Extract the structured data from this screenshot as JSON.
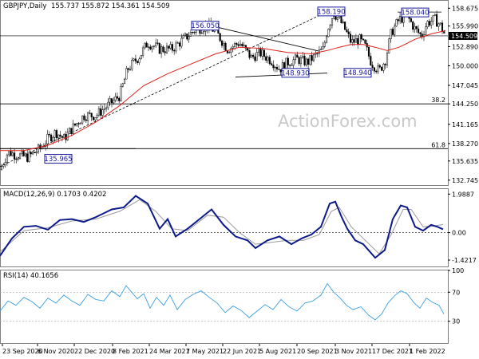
{
  "chart_data": [
    {
      "type": "candlestick",
      "title": "GBPJPY,Daily",
      "ohlc_text": "155.737 155.872 154.361 154.509",
      "last_price": 154.509,
      "last_price_label": "154.509",
      "y_ticks": [
        158.675,
        155.99,
        152.89,
        150.0,
        147.045,
        144.25,
        141.165,
        138.27,
        135.635,
        132.745
      ],
      "y_tick_labels": [
        "158.675",
        "155.990",
        "152.890",
        "150.000",
        "147.045",
        "144.250",
        "141.165",
        "138.270",
        "135.635",
        "132.745"
      ],
      "ylim": [
        132.0,
        159.8
      ],
      "x_labels": [
        "23 Sep 2020",
        "6 Nov 2020",
        "22 Dec 2020",
        "8 Feb 2021",
        "24 Mar 2021",
        "7 May 2021",
        "22 Jun 2021",
        "5 Aug 2021",
        "20 Sep 2021",
        "3 Nov 2021",
        "17 Dec 2021",
        "1 Feb 2022"
      ],
      "close_path": [
        [
          0,
          134.3
        ],
        [
          10,
          137.0
        ],
        [
          22,
          136.5
        ],
        [
          35,
          136.2
        ],
        [
          50,
          137.5
        ],
        [
          60,
          139.0
        ],
        [
          70,
          140.0
        ],
        [
          80,
          139.0
        ],
        [
          90,
          140.5
        ],
        [
          105,
          142.5
        ],
        [
          120,
          142.5
        ],
        [
          135,
          144.0
        ],
        [
          150,
          145.5
        ],
        [
          160,
          149.5
        ],
        [
          175,
          151.5
        ],
        [
          185,
          153.5
        ],
        [
          200,
          152.5
        ],
        [
          215,
          152.5
        ],
        [
          230,
          154.0
        ],
        [
          245,
          155.5
        ],
        [
          260,
          156.0
        ],
        [
          270,
          155.2
        ],
        [
          285,
          152.5
        ],
        [
          300,
          153.5
        ],
        [
          315,
          151.2
        ],
        [
          325,
          152.0
        ],
        [
          340,
          150.8
        ],
        [
          350,
          149.5
        ],
        [
          360,
          150.5
        ],
        [
          372,
          151.0
        ],
        [
          385,
          150.5
        ],
        [
          395,
          151.5
        ],
        [
          405,
          152.5
        ],
        [
          410,
          155.5
        ],
        [
          418,
          158.0
        ],
        [
          425,
          157.0
        ],
        [
          432,
          155.5
        ],
        [
          440,
          153.5
        ],
        [
          450,
          154.0
        ],
        [
          458,
          152.8
        ],
        [
          465,
          150.5
        ],
        [
          475,
          149.2
        ],
        [
          483,
          151.0
        ],
        [
          490,
          155.0
        ],
        [
          500,
          157.0
        ],
        [
          510,
          157.5
        ],
        [
          520,
          155.5
        ],
        [
          528,
          154.5
        ],
        [
          535,
          156.5
        ],
        [
          545,
          157.0
        ],
        [
          552,
          156.0
        ],
        [
          558,
          154.5
        ]
      ],
      "ma_path": [
        [
          0,
          137.2
        ],
        [
          30,
          137.2
        ],
        [
          60,
          138.0
        ],
        [
          90,
          139.5
        ],
        [
          120,
          141.5
        ],
        [
          150,
          144.0
        ],
        [
          180,
          147.0
        ],
        [
          210,
          148.8
        ],
        [
          240,
          150.3
        ],
        [
          270,
          151.8
        ],
        [
          300,
          152.8
        ],
        [
          330,
          152.6
        ],
        [
          360,
          152.0
        ],
        [
          390,
          151.8
        ],
        [
          410,
          152.3
        ],
        [
          425,
          152.8
        ],
        [
          440,
          153.2
        ],
        [
          455,
          153.2
        ],
        [
          470,
          152.8
        ],
        [
          485,
          152.3
        ],
        [
          500,
          152.8
        ],
        [
          520,
          154.0
        ],
        [
          540,
          154.8
        ],
        [
          558,
          155.3
        ]
      ],
      "annotations": [
        {
          "label": "156.050",
          "x": 257,
          "y": 156.05
        },
        {
          "label": "158.190",
          "x": 415,
          "y": 158.19
        },
        {
          "label": "158.040",
          "x": 520,
          "y": 158.04
        },
        {
          "label": "148.930",
          "x": 370,
          "y": 148.93
        },
        {
          "label": "148.940",
          "x": 448,
          "y": 148.94
        },
        {
          "label": "135.965",
          "x": 73,
          "y": 135.965
        }
      ],
      "fib_levels": [
        {
          "label": "38.2",
          "value": 144.25
        },
        {
          "label": "61.8",
          "value": 137.5
        }
      ],
      "watermark": "ActionForex.com"
    },
    {
      "type": "line",
      "title": "MACD(12,26,9) 0.1703 0.4202",
      "y_tick_labels": [
        "1.9887",
        "0.00",
        "-1.4217"
      ],
      "y_ticks": [
        1.9887,
        0.0,
        -1.4217
      ],
      "ylim": [
        -1.75,
        2.25
      ],
      "macd_path": [
        [
          0,
          -1.2
        ],
        [
          15,
          -0.3
        ],
        [
          30,
          0.3
        ],
        [
          45,
          0.35
        ],
        [
          60,
          0.15
        ],
        [
          75,
          0.65
        ],
        [
          90,
          0.7
        ],
        [
          105,
          0.55
        ],
        [
          120,
          0.8
        ],
        [
          140,
          1.2
        ],
        [
          155,
          1.3
        ],
        [
          170,
          1.9
        ],
        [
          185,
          1.5
        ],
        [
          200,
          0.2
        ],
        [
          210,
          0.7
        ],
        [
          220,
          -0.2
        ],
        [
          235,
          0.2
        ],
        [
          250,
          0.7
        ],
        [
          265,
          1.2
        ],
        [
          280,
          0.4
        ],
        [
          295,
          -0.2
        ],
        [
          310,
          -0.4
        ],
        [
          320,
          -0.8
        ],
        [
          335,
          -0.4
        ],
        [
          350,
          -0.2
        ],
        [
          365,
          -0.6
        ],
        [
          378,
          -0.3
        ],
        [
          390,
          -0.1
        ],
        [
          402,
          0.3
        ],
        [
          413,
          1.5
        ],
        [
          420,
          1.6
        ],
        [
          428,
          0.8
        ],
        [
          435,
          0.2
        ],
        [
          445,
          -0.4
        ],
        [
          455,
          -0.6
        ],
        [
          470,
          -1.3
        ],
        [
          482,
          -0.9
        ],
        [
          492,
          0.7
        ],
        [
          502,
          1.4
        ],
        [
          510,
          1.3
        ],
        [
          520,
          0.3
        ],
        [
          530,
          0.1
        ],
        [
          540,
          0.4
        ],
        [
          548,
          0.3
        ],
        [
          555,
          0.17
        ]
      ],
      "signal_path": [
        [
          0,
          -1.0
        ],
        [
          30,
          0.1
        ],
        [
          60,
          0.25
        ],
        [
          90,
          0.6
        ],
        [
          120,
          0.7
        ],
        [
          150,
          1.1
        ],
        [
          175,
          1.7
        ],
        [
          195,
          1.1
        ],
        [
          215,
          0.2
        ],
        [
          235,
          0.1
        ],
        [
          260,
          0.9
        ],
        [
          280,
          0.8
        ],
        [
          300,
          0.0
        ],
        [
          320,
          -0.6
        ],
        [
          340,
          -0.5
        ],
        [
          360,
          -0.4
        ],
        [
          380,
          -0.4
        ],
        [
          400,
          -0.1
        ],
        [
          415,
          1.1
        ],
        [
          425,
          1.3
        ],
        [
          440,
          0.3
        ],
        [
          460,
          -0.5
        ],
        [
          475,
          -1.1
        ],
        [
          490,
          -0.1
        ],
        [
          505,
          1.2
        ],
        [
          515,
          1.2
        ],
        [
          530,
          0.3
        ],
        [
          545,
          0.35
        ],
        [
          555,
          0.42
        ]
      ]
    },
    {
      "type": "line",
      "title": "RSI(14) 40.1656",
      "y_tick_labels": [
        "100",
        "70",
        "30",
        "0"
      ],
      "y_ticks": [
        100,
        70,
        30,
        0
      ],
      "ylim": [
        0,
        100
      ],
      "rsi_path": [
        [
          0,
          44
        ],
        [
          10,
          58
        ],
        [
          20,
          52
        ],
        [
          30,
          63
        ],
        [
          40,
          57
        ],
        [
          50,
          48
        ],
        [
          60,
          62
        ],
        [
          70,
          55
        ],
        [
          80,
          66
        ],
        [
          90,
          58
        ],
        [
          100,
          52
        ],
        [
          110,
          67
        ],
        [
          120,
          60
        ],
        [
          130,
          58
        ],
        [
          140,
          72
        ],
        [
          150,
          64
        ],
        [
          158,
          79
        ],
        [
          165,
          70
        ],
        [
          172,
          61
        ],
        [
          180,
          68
        ],
        [
          188,
          48
        ],
        [
          196,
          63
        ],
        [
          205,
          52
        ],
        [
          213,
          66
        ],
        [
          222,
          46
        ],
        [
          232,
          60
        ],
        [
          242,
          67
        ],
        [
          252,
          72
        ],
        [
          262,
          63
        ],
        [
          272,
          55
        ],
        [
          282,
          42
        ],
        [
          292,
          51
        ],
        [
          302,
          45
        ],
        [
          312,
          35
        ],
        [
          322,
          44
        ],
        [
          332,
          53
        ],
        [
          342,
          46
        ],
        [
          352,
          60
        ],
        [
          362,
          50
        ],
        [
          372,
          44
        ],
        [
          382,
          55
        ],
        [
          392,
          58
        ],
        [
          402,
          66
        ],
        [
          410,
          82
        ],
        [
          418,
          70
        ],
        [
          426,
          62
        ],
        [
          434,
          52
        ],
        [
          442,
          46
        ],
        [
          452,
          50
        ],
        [
          462,
          38
        ],
        [
          470,
          32
        ],
        [
          478,
          40
        ],
        [
          486,
          55
        ],
        [
          494,
          65
        ],
        [
          502,
          72
        ],
        [
          510,
          68
        ],
        [
          518,
          56
        ],
        [
          526,
          48
        ],
        [
          534,
          62
        ],
        [
          542,
          56
        ],
        [
          550,
          52
        ],
        [
          556,
          40
        ]
      ]
    }
  ]
}
